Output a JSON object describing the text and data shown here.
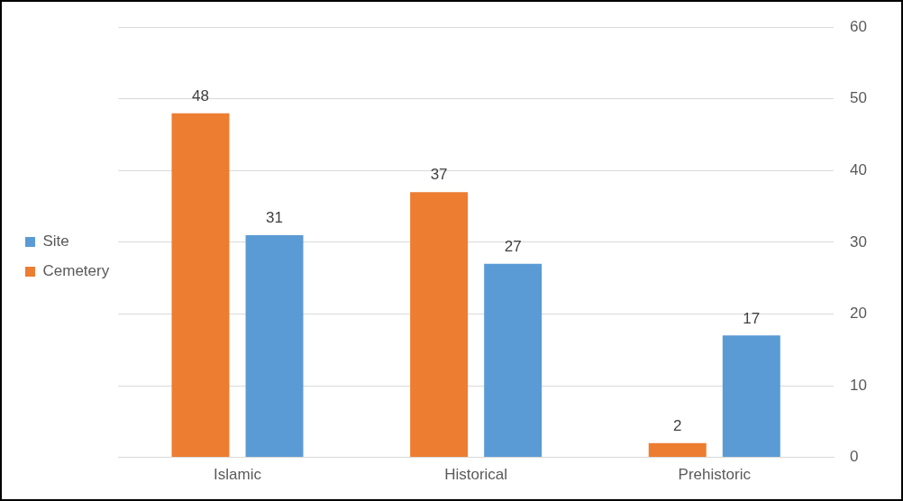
{
  "chart_data": {
    "type": "bar",
    "categories": [
      "Islamic",
      "Historical",
      "Prehistoric"
    ],
    "series": [
      {
        "name": "Cemetery",
        "color": "#ed7d31",
        "values": [
          48,
          37,
          2
        ]
      },
      {
        "name": "Site",
        "color": "#5b9bd5",
        "values": [
          31,
          27,
          17
        ]
      }
    ],
    "ylim": [
      0,
      60
    ],
    "yticks": [
      0,
      10,
      20,
      30,
      40,
      50,
      60
    ],
    "grid": "y",
    "legend": "left",
    "data_labels": true
  }
}
